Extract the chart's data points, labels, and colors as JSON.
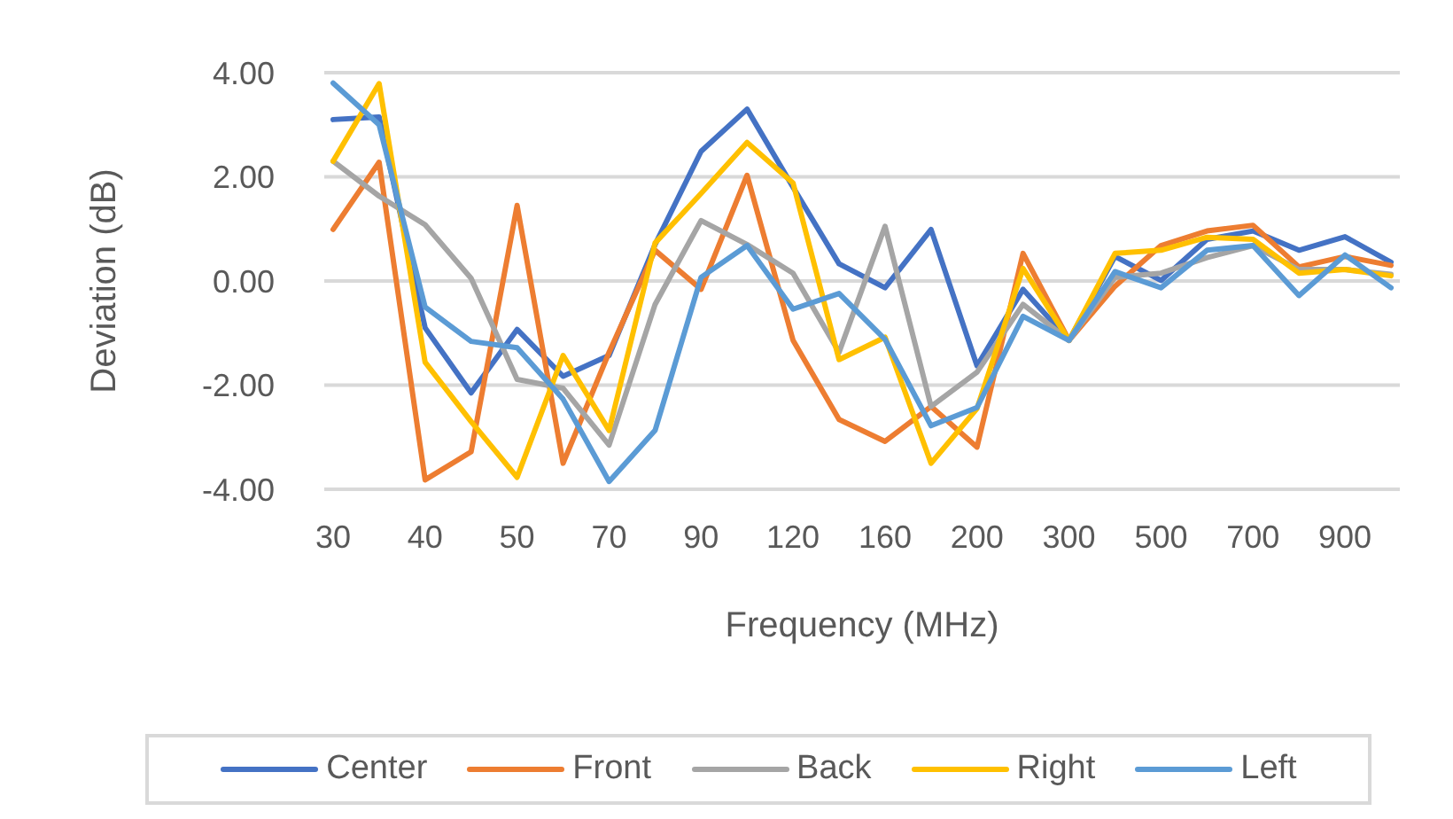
{
  "chart_data": {
    "type": "line",
    "xlabel": "Frequency (MHz)",
    "ylabel": "Deviation (dB)",
    "categories": [
      "30",
      null,
      "40",
      null,
      "50",
      null,
      "70",
      null,
      "90",
      null,
      "120",
      null,
      "160",
      null,
      "200",
      null,
      "300",
      null,
      "500",
      null,
      "700",
      null,
      "900",
      null
    ],
    "series": [
      {
        "name": "Center",
        "color": "#4472c4",
        "values": [
          3.1,
          3.15,
          -0.9,
          -2.15,
          -0.93,
          -1.83,
          -1.43,
          0.7,
          2.49,
          3.3,
          1.8,
          0.33,
          -0.13,
          0.99,
          -1.63,
          -0.16,
          -1.14,
          0.47,
          0.01,
          0.8,
          0.96,
          0.59,
          0.85,
          0.36
        ]
      },
      {
        "name": "Front",
        "color": "#ed7d31",
        "values": [
          0.99,
          2.28,
          -3.82,
          -3.28,
          1.45,
          -3.5,
          -1.37,
          0.59,
          -0.16,
          2.03,
          -1.14,
          -2.66,
          -3.08,
          -2.41,
          -3.19,
          0.53,
          -1.14,
          -0.1,
          0.68,
          0.96,
          1.07,
          0.27,
          0.47,
          0.3
        ]
      },
      {
        "name": "Back",
        "color": "#a5a5a5",
        "values": [
          2.3,
          1.63,
          1.08,
          0.05,
          -1.89,
          -2.06,
          -3.15,
          -0.45,
          1.16,
          0.7,
          0.15,
          -1.37,
          1.05,
          -2.41,
          -1.75,
          -0.45,
          -1.14,
          0.07,
          0.15,
          0.45,
          0.68,
          0.22,
          0.22,
          0.13
        ]
      },
      {
        "name": "Right",
        "color": "#ffc000",
        "values": [
          2.3,
          3.79,
          -1.56,
          -2.7,
          -3.77,
          -1.43,
          -2.87,
          0.73,
          1.68,
          2.66,
          1.88,
          -1.51,
          -1.08,
          -3.5,
          -2.45,
          0.24,
          -1.14,
          0.53,
          0.59,
          0.84,
          0.8,
          0.15,
          0.22,
          0.1
        ]
      },
      {
        "name": "Left",
        "color": "#5b9bd5",
        "values": [
          3.8,
          3.0,
          -0.5,
          -1.16,
          -1.28,
          -2.27,
          -3.85,
          -2.87,
          0.07,
          0.68,
          -0.54,
          -0.24,
          -1.12,
          -2.78,
          -2.43,
          -0.68,
          -1.14,
          0.18,
          -0.13,
          0.59,
          0.68,
          -0.28,
          0.5,
          -0.13
        ]
      }
    ],
    "ylim": [
      -4,
      4
    ],
    "yticks": [
      {
        "value": -4,
        "label": "-4.00"
      },
      {
        "value": -2,
        "label": "-2.00"
      },
      {
        "value": 0,
        "label": "0.00"
      },
      {
        "value": 2,
        "label": "2.00"
      },
      {
        "value": 4,
        "label": "4.00"
      }
    ],
    "grid": "y",
    "legend": "bottom",
    "marker": "none",
    "line_style": "solid"
  }
}
